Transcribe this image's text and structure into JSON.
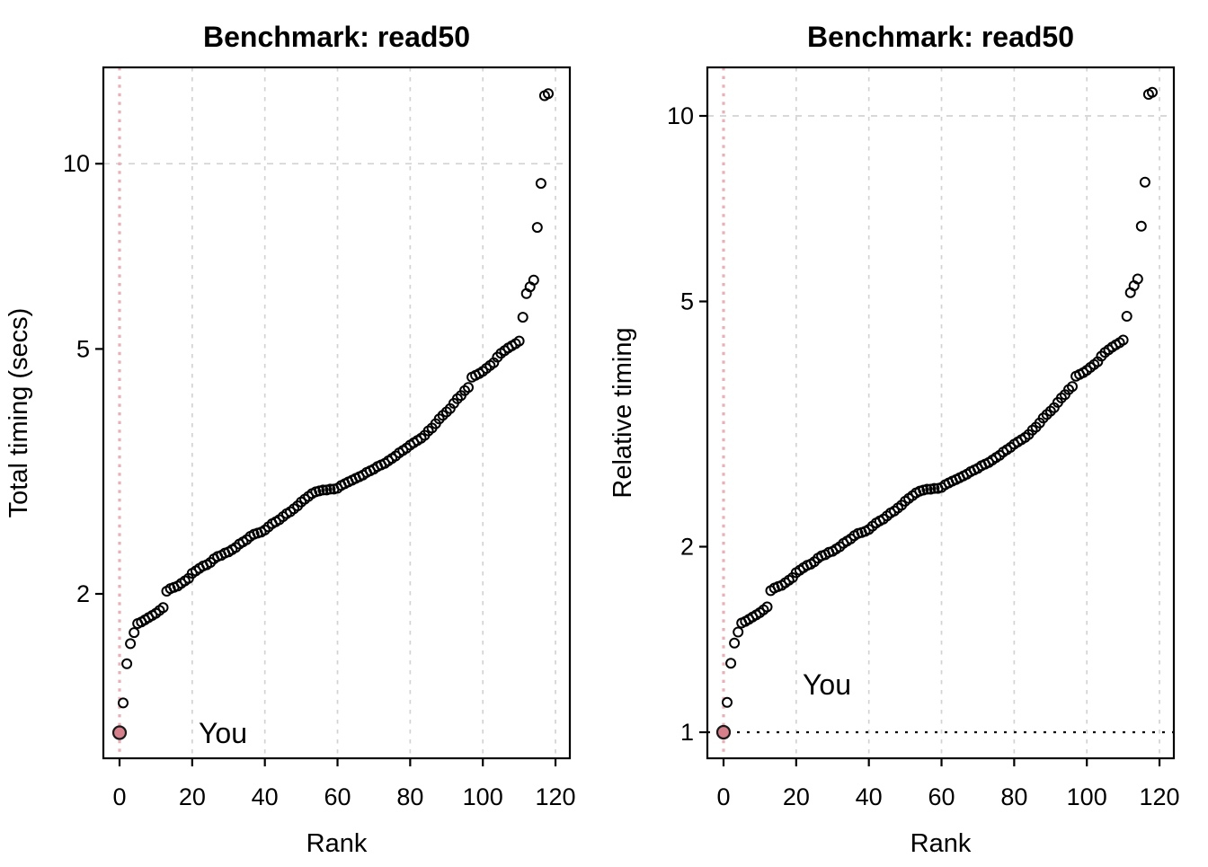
{
  "figure": {
    "panels": [
      {
        "title": "Benchmark: read50",
        "xlabel": "Rank",
        "ylabel": "Total timing (secs)",
        "you_label": "You",
        "xticks": [
          0,
          20,
          40,
          60,
          80,
          100,
          120
        ],
        "yticks": [
          2,
          5,
          10
        ],
        "grid_ytick": 10,
        "series_index": 0
      },
      {
        "title": "Benchmark: read50",
        "xlabel": "Rank",
        "ylabel": "Relative timing",
        "you_label": "You",
        "xticks": [
          0,
          20,
          40,
          60,
          80,
          100,
          120
        ],
        "yticks": [
          1,
          2,
          5,
          10
        ],
        "grid_ytick": 10,
        "reference_line_y": 1,
        "series_index": 1
      }
    ],
    "colors": {
      "point_stroke": "#000000",
      "you_point_fill": "#D5808B",
      "you_point_stroke": "#1a1a1a",
      "you_marker_line": "#EAB0B7",
      "you_text": "#D5808B",
      "grid": "#D3D3D3",
      "reference_line": "#000000",
      "box": "#000000"
    }
  },
  "chart_data": {
    "type": "scatter",
    "title": "Benchmark: read50",
    "xlabel": "Rank",
    "yscale": "log",
    "xlim": [
      0,
      120
    ],
    "grid": "dashed-gray-vertical-at-xticks",
    "highlight": {
      "rank": 0,
      "total_secs": 1.19,
      "relative": 1.0,
      "label": "You"
    },
    "ranks": [
      0,
      1,
      2,
      3,
      4,
      5,
      6,
      7,
      8,
      9,
      10,
      11,
      12,
      13,
      14,
      15,
      16,
      17,
      18,
      19,
      20,
      21,
      22,
      23,
      24,
      25,
      26,
      27,
      28,
      29,
      30,
      31,
      32,
      33,
      34,
      35,
      36,
      37,
      38,
      39,
      40,
      41,
      42,
      43,
      44,
      45,
      46,
      47,
      48,
      49,
      50,
      51,
      52,
      53,
      54,
      55,
      56,
      57,
      58,
      59,
      60,
      61,
      62,
      63,
      64,
      65,
      66,
      67,
      68,
      69,
      70,
      71,
      72,
      73,
      74,
      75,
      76,
      77,
      78,
      79,
      80,
      81,
      82,
      83,
      84,
      85,
      86,
      87,
      88,
      89,
      90,
      91,
      92,
      93,
      94,
      95,
      96,
      97,
      98,
      99,
      100,
      101,
      102,
      103,
      104,
      105,
      106,
      107,
      108,
      109,
      110,
      111,
      112,
      113,
      114,
      115,
      116,
      117,
      118
    ],
    "series": [
      {
        "name": "Total timing (secs)",
        "ylabel": "Total timing (secs)",
        "yticks": [
          2,
          5,
          10
        ],
        "ylim": [
          1.08,
          14.3
        ],
        "values": [
          1.19,
          1.33,
          1.54,
          1.66,
          1.73,
          1.79,
          1.8,
          1.815,
          1.83,
          1.845,
          1.86,
          1.88,
          1.9,
          2.02,
          2.04,
          2.05,
          2.06,
          2.08,
          2.1,
          2.12,
          2.16,
          2.18,
          2.2,
          2.22,
          2.23,
          2.25,
          2.28,
          2.3,
          2.31,
          2.33,
          2.34,
          2.36,
          2.38,
          2.41,
          2.43,
          2.45,
          2.48,
          2.5,
          2.51,
          2.52,
          2.54,
          2.57,
          2.6,
          2.62,
          2.64,
          2.67,
          2.7,
          2.72,
          2.75,
          2.78,
          2.82,
          2.85,
          2.88,
          2.91,
          2.93,
          2.94,
          2.95,
          2.95,
          2.96,
          2.96,
          2.97,
          3.0,
          3.02,
          3.04,
          3.06,
          3.08,
          3.1,
          3.12,
          3.15,
          3.17,
          3.19,
          3.22,
          3.24,
          3.26,
          3.29,
          3.32,
          3.35,
          3.39,
          3.42,
          3.45,
          3.49,
          3.52,
          3.55,
          3.58,
          3.62,
          3.68,
          3.72,
          3.78,
          3.85,
          3.9,
          3.95,
          4.0,
          4.08,
          4.15,
          4.2,
          4.28,
          4.33,
          4.5,
          4.53,
          4.56,
          4.6,
          4.65,
          4.7,
          4.75,
          4.85,
          4.92,
          4.97,
          5.02,
          5.06,
          5.1,
          5.15,
          5.63,
          6.15,
          6.31,
          6.47,
          7.88,
          9.29,
          12.9,
          13.0
        ]
      },
      {
        "name": "Relative timing",
        "ylabel": "Relative timing",
        "yticks": [
          1,
          2,
          5,
          10
        ],
        "ylim": [
          0.91,
          12.0
        ],
        "values": [
          1.0,
          1.118,
          1.294,
          1.395,
          1.454,
          1.504,
          1.513,
          1.525,
          1.538,
          1.55,
          1.563,
          1.58,
          1.597,
          1.697,
          1.714,
          1.723,
          1.731,
          1.748,
          1.765,
          1.782,
          1.815,
          1.832,
          1.849,
          1.866,
          1.874,
          1.891,
          1.916,
          1.933,
          1.941,
          1.958,
          1.966,
          1.983,
          2.0,
          2.025,
          2.042,
          2.059,
          2.084,
          2.101,
          2.109,
          2.118,
          2.134,
          2.16,
          2.185,
          2.202,
          2.218,
          2.244,
          2.269,
          2.286,
          2.311,
          2.336,
          2.37,
          2.395,
          2.42,
          2.445,
          2.462,
          2.471,
          2.479,
          2.479,
          2.487,
          2.487,
          2.496,
          2.521,
          2.538,
          2.555,
          2.571,
          2.588,
          2.605,
          2.622,
          2.647,
          2.664,
          2.681,
          2.706,
          2.723,
          2.74,
          2.765,
          2.79,
          2.815,
          2.849,
          2.874,
          2.899,
          2.933,
          2.958,
          2.983,
          3.008,
          3.042,
          3.092,
          3.126,
          3.176,
          3.235,
          3.277,
          3.319,
          3.361,
          3.429,
          3.487,
          3.529,
          3.597,
          3.639,
          3.782,
          3.807,
          3.832,
          3.866,
          3.908,
          3.95,
          3.992,
          4.076,
          4.134,
          4.176,
          4.218,
          4.252,
          4.286,
          4.328,
          4.731,
          5.168,
          5.303,
          5.437,
          6.622,
          7.807,
          10.84,
          10.924
        ]
      }
    ]
  }
}
